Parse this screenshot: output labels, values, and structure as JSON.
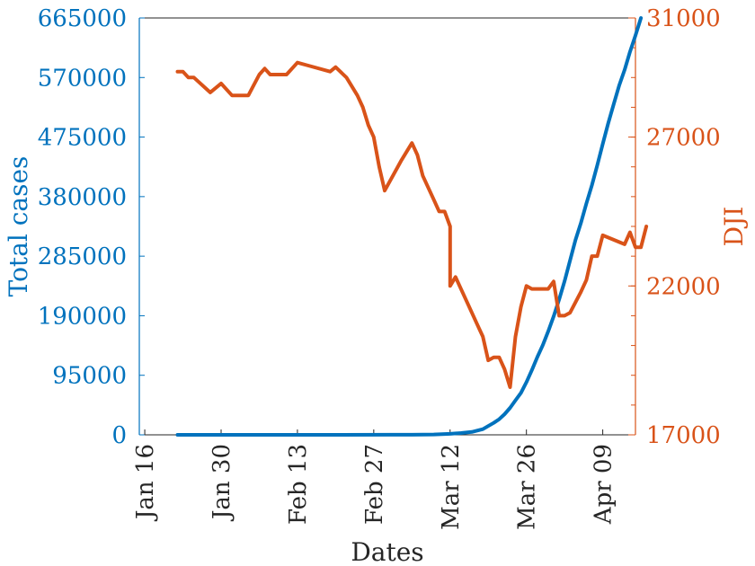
{
  "chart_data": {
    "type": "line",
    "xlabel": "Dates",
    "x_ticks": [
      "Jan 16",
      "Jan 30",
      "Feb 13",
      "Feb 27",
      "Mar 12",
      "Mar 26",
      "Apr 09"
    ],
    "x_tick_dates": [
      "2020-01-16",
      "2020-01-30",
      "2020-02-13",
      "2020-02-27",
      "2020-03-12",
      "2020-03-26",
      "2020-04-09"
    ],
    "x_range": [
      "2020-01-15",
      "2020-04-15"
    ],
    "left_axis": {
      "label": "Total cases",
      "range": [
        0,
        665000
      ],
      "ticks": [
        "0",
        "95000",
        "190000",
        "285000",
        "380000",
        "475000",
        "570000",
        "665000"
      ],
      "color": "#0072BD"
    },
    "right_axis": {
      "label": "DJI",
      "range": [
        17000,
        31000
      ],
      "ticks": [
        "17000",
        "22000",
        "27000",
        "31000"
      ],
      "color": "#D95319"
    },
    "series": [
      {
        "axis": "left",
        "color": "#0072BD",
        "points": [
          [
            "2020-01-22",
            0
          ],
          [
            "2020-02-01",
            0
          ],
          [
            "2020-02-15",
            0
          ],
          [
            "2020-03-01",
            100
          ],
          [
            "2020-03-05",
            200
          ],
          [
            "2020-03-09",
            600
          ],
          [
            "2020-03-12",
            1600
          ],
          [
            "2020-03-14",
            2900
          ],
          [
            "2020-03-16",
            4600
          ],
          [
            "2020-03-18",
            9000
          ],
          [
            "2020-03-19",
            14000
          ],
          [
            "2020-03-20",
            19000
          ],
          [
            "2020-03-21",
            25000
          ],
          [
            "2020-03-22",
            33000
          ],
          [
            "2020-03-23",
            43000
          ],
          [
            "2020-03-24",
            55000
          ],
          [
            "2020-03-25",
            67000
          ],
          [
            "2020-03-26",
            84000
          ],
          [
            "2020-03-27",
            103000
          ],
          [
            "2020-03-28",
            124000
          ],
          [
            "2020-03-29",
            143000
          ],
          [
            "2020-03-30",
            165000
          ],
          [
            "2020-03-31",
            189000
          ],
          [
            "2020-04-01",
            216000
          ],
          [
            "2020-04-02",
            245000
          ],
          [
            "2020-04-03",
            278000
          ],
          [
            "2020-04-04",
            311000
          ],
          [
            "2020-04-05",
            338000
          ],
          [
            "2020-04-06",
            369000
          ],
          [
            "2020-04-07",
            398000
          ],
          [
            "2020-04-08",
            430000
          ],
          [
            "2020-04-09",
            464000
          ],
          [
            "2020-04-10",
            497000
          ],
          [
            "2020-04-11",
            527000
          ],
          [
            "2020-04-12",
            557000
          ],
          [
            "2020-04-13",
            582000
          ],
          [
            "2020-04-14",
            611000
          ],
          [
            "2020-04-15",
            637000
          ],
          [
            "2020-04-16",
            665000
          ]
        ]
      },
      {
        "axis": "right",
        "color": "#D95319",
        "points": [
          [
            "2020-01-22",
            29200
          ],
          [
            "2020-01-23",
            29200
          ],
          [
            "2020-01-24",
            29000
          ],
          [
            "2020-01-25",
            29000
          ],
          [
            "2020-01-28",
            28500
          ],
          [
            "2020-01-30",
            28800
          ],
          [
            "2020-02-01",
            28400
          ],
          [
            "2020-02-04",
            28400
          ],
          [
            "2020-02-06",
            29100
          ],
          [
            "2020-02-07",
            29300
          ],
          [
            "2020-02-08",
            29100
          ],
          [
            "2020-02-11",
            29100
          ],
          [
            "2020-02-13",
            29500
          ],
          [
            "2020-02-15",
            29400
          ],
          [
            "2020-02-19",
            29200
          ],
          [
            "2020-02-20",
            29350
          ],
          [
            "2020-02-22",
            29000
          ],
          [
            "2020-02-24",
            28400
          ],
          [
            "2020-02-25",
            28000
          ],
          [
            "2020-02-26",
            27400
          ],
          [
            "2020-02-27",
            27000
          ],
          [
            "2020-02-28",
            26000
          ],
          [
            "2020-02-29",
            25200
          ],
          [
            "2020-03-03",
            26200
          ],
          [
            "2020-03-05",
            26800
          ],
          [
            "2020-03-06",
            26400
          ],
          [
            "2020-03-07",
            25700
          ],
          [
            "2020-03-09",
            24900
          ],
          [
            "2020-03-10",
            24500
          ],
          [
            "2020-03-11",
            24500
          ],
          [
            "2020-03-12",
            24000
          ],
          [
            "2020-03-12",
            22000
          ],
          [
            "2020-03-13",
            22300
          ],
          [
            "2020-03-15",
            21500
          ],
          [
            "2020-03-17",
            20700
          ],
          [
            "2020-03-18",
            20300
          ],
          [
            "2020-03-19",
            19500
          ],
          [
            "2020-03-20",
            19600
          ],
          [
            "2020-03-21",
            19600
          ],
          [
            "2020-03-22",
            19200
          ],
          [
            "2020-03-23",
            18600
          ],
          [
            "2020-03-24",
            20300
          ],
          [
            "2020-03-25",
            21300
          ],
          [
            "2020-03-26",
            22000
          ],
          [
            "2020-03-27",
            21900
          ],
          [
            "2020-03-28",
            21900
          ],
          [
            "2020-03-30",
            21900
          ],
          [
            "2020-03-31",
            22150
          ],
          [
            "2020-04-01",
            21000
          ],
          [
            "2020-04-02",
            21000
          ],
          [
            "2020-04-03",
            21100
          ],
          [
            "2020-04-05",
            21800
          ],
          [
            "2020-04-06",
            22200
          ],
          [
            "2020-04-07",
            23000
          ],
          [
            "2020-04-08",
            23000
          ],
          [
            "2020-04-09",
            23700
          ],
          [
            "2020-04-13",
            23400
          ],
          [
            "2020-04-14",
            23800
          ],
          [
            "2020-04-15",
            23300
          ],
          [
            "2020-04-16",
            23300
          ],
          [
            "2020-04-17",
            24000
          ]
        ]
      }
    ],
    "grid": false,
    "legend": "none"
  }
}
